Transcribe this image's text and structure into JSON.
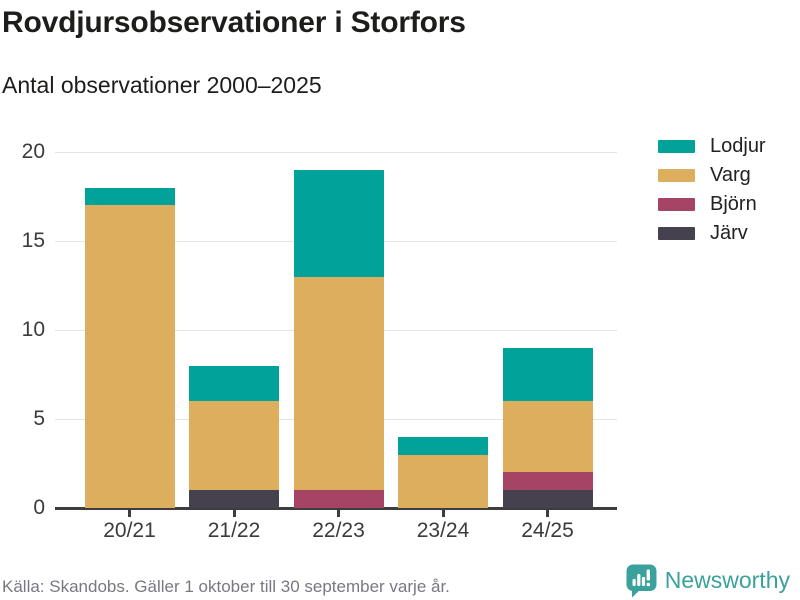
{
  "header": {
    "title": "Rovdjursobservationer i Storfors",
    "subtitle": "Antal observationer 2000–2025"
  },
  "chart_data": {
    "type": "bar",
    "stacked": true,
    "title": "Rovdjursobservationer i Storfors",
    "subtitle": "Antal observationer 2000–2025",
    "categories": [
      "20/21",
      "21/22",
      "22/23",
      "23/24",
      "24/25"
    ],
    "series": [
      {
        "name": "Lodjur",
        "color": "#00a29a",
        "values": [
          1,
          2,
          6,
          1,
          3
        ]
      },
      {
        "name": "Varg",
        "color": "#dcae5e",
        "values": [
          17,
          5,
          12,
          3,
          4
        ]
      },
      {
        "name": "Björn",
        "color": "#a64465",
        "values": [
          0,
          0,
          1,
          0,
          1
        ]
      },
      {
        "name": "Järv",
        "color": "#45414e",
        "values": [
          0,
          1,
          0,
          0,
          1
        ]
      }
    ],
    "stack_order_bottom_to_top": [
      "Järv",
      "Björn",
      "Varg",
      "Lodjur"
    ],
    "totals": [
      18,
      8,
      19,
      4,
      9
    ],
    "xlabel": "",
    "ylabel": "",
    "ylim": [
      0,
      20
    ],
    "yticks": [
      0,
      5,
      10,
      15,
      20
    ],
    "grid": true,
    "legend_position": "right"
  },
  "footer": {
    "source": "Källa: Skandobs. Gäller 1 oktober till 30 september varje år.",
    "brand": "Newsworthy"
  },
  "colors": {
    "axis": "#3d3d3d",
    "grid": "#e4e4e4",
    "brand_teal": "#3ba19c",
    "text_dark": "#1d1d1b",
    "text_muted": "#787882"
  }
}
